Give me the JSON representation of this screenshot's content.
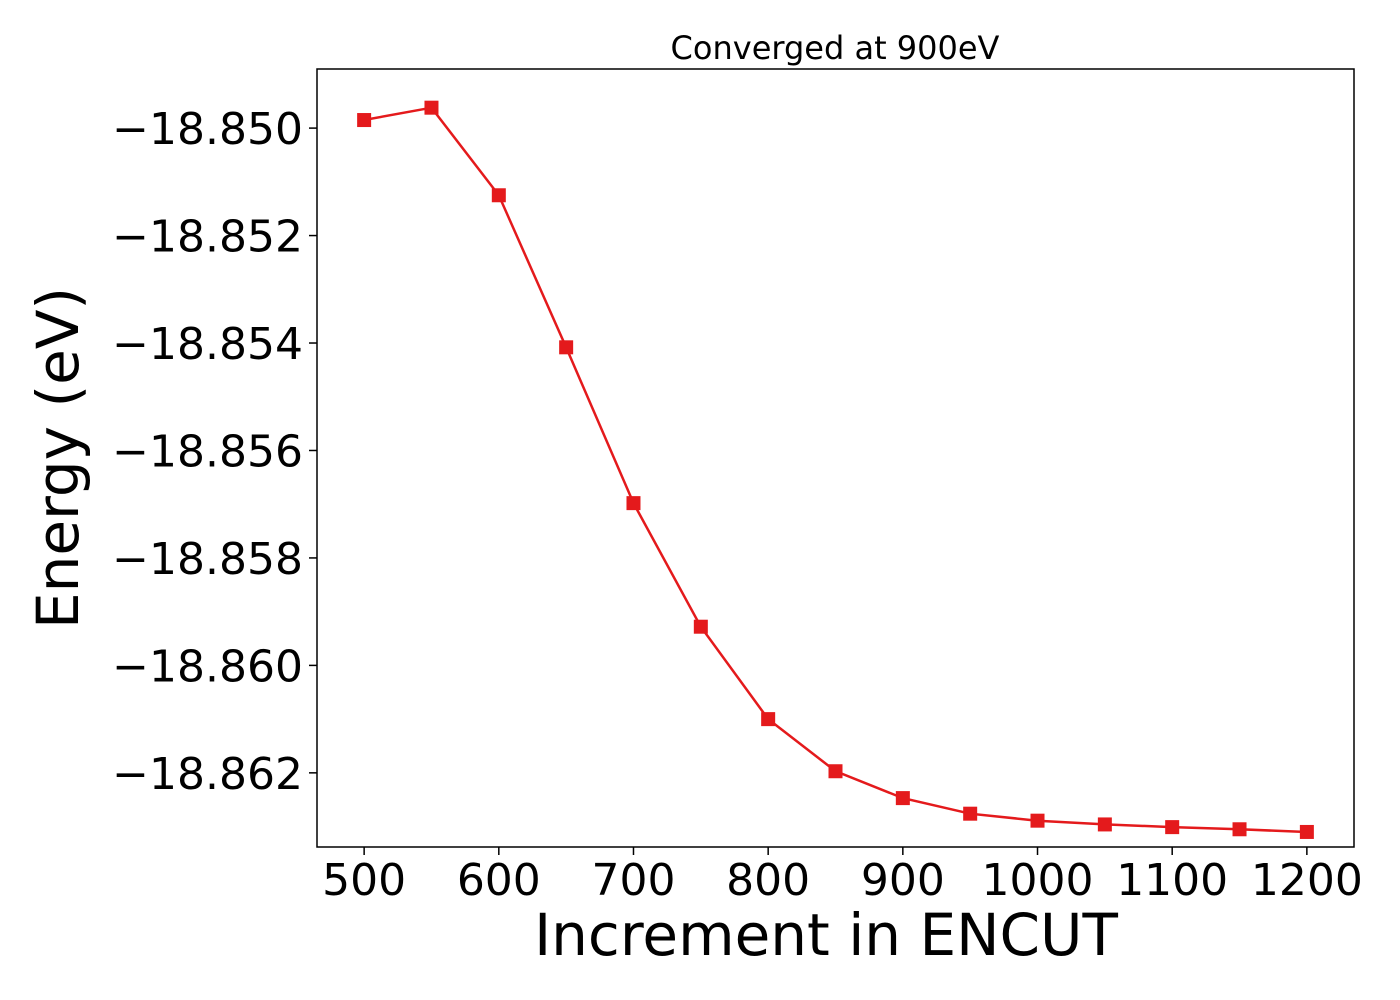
{
  "chart_data": {
    "type": "line",
    "title": "Converged at 900eV",
    "xlabel": "Increment in ENCUT",
    "ylabel": "Energy (eV)",
    "xlim": [
      465,
      1235
    ],
    "ylim": [
      -18.86338,
      -18.8489
    ],
    "xticks": [
      500,
      600,
      700,
      800,
      900,
      1000,
      1100,
      1200
    ],
    "xtick_labels": [
      "500",
      "600",
      "700",
      "800",
      "900",
      "1000",
      "1100",
      "1200"
    ],
    "yticks": [
      -18.85,
      -18.852,
      -18.854,
      -18.856,
      -18.858,
      -18.86,
      -18.862
    ],
    "ytick_labels": [
      "−18.850",
      "−18.852",
      "−18.854",
      "−18.856",
      "−18.858",
      "−18.860",
      "−18.862"
    ],
    "grid": false,
    "marker": "square",
    "color": "#e41a1c",
    "series": [
      {
        "x": [
          500,
          550,
          600,
          650,
          700,
          750,
          800,
          850,
          900,
          950,
          1000,
          1050,
          1100,
          1150,
          1200
        ],
        "values": [
          -18.84985,
          -18.84962,
          -18.85125,
          -18.85408,
          -18.85698,
          -18.85928,
          -18.861,
          -18.86197,
          -18.86247,
          -18.86276,
          -18.86289,
          -18.86296,
          -18.86301,
          -18.86305,
          -18.8631
        ]
      }
    ]
  }
}
